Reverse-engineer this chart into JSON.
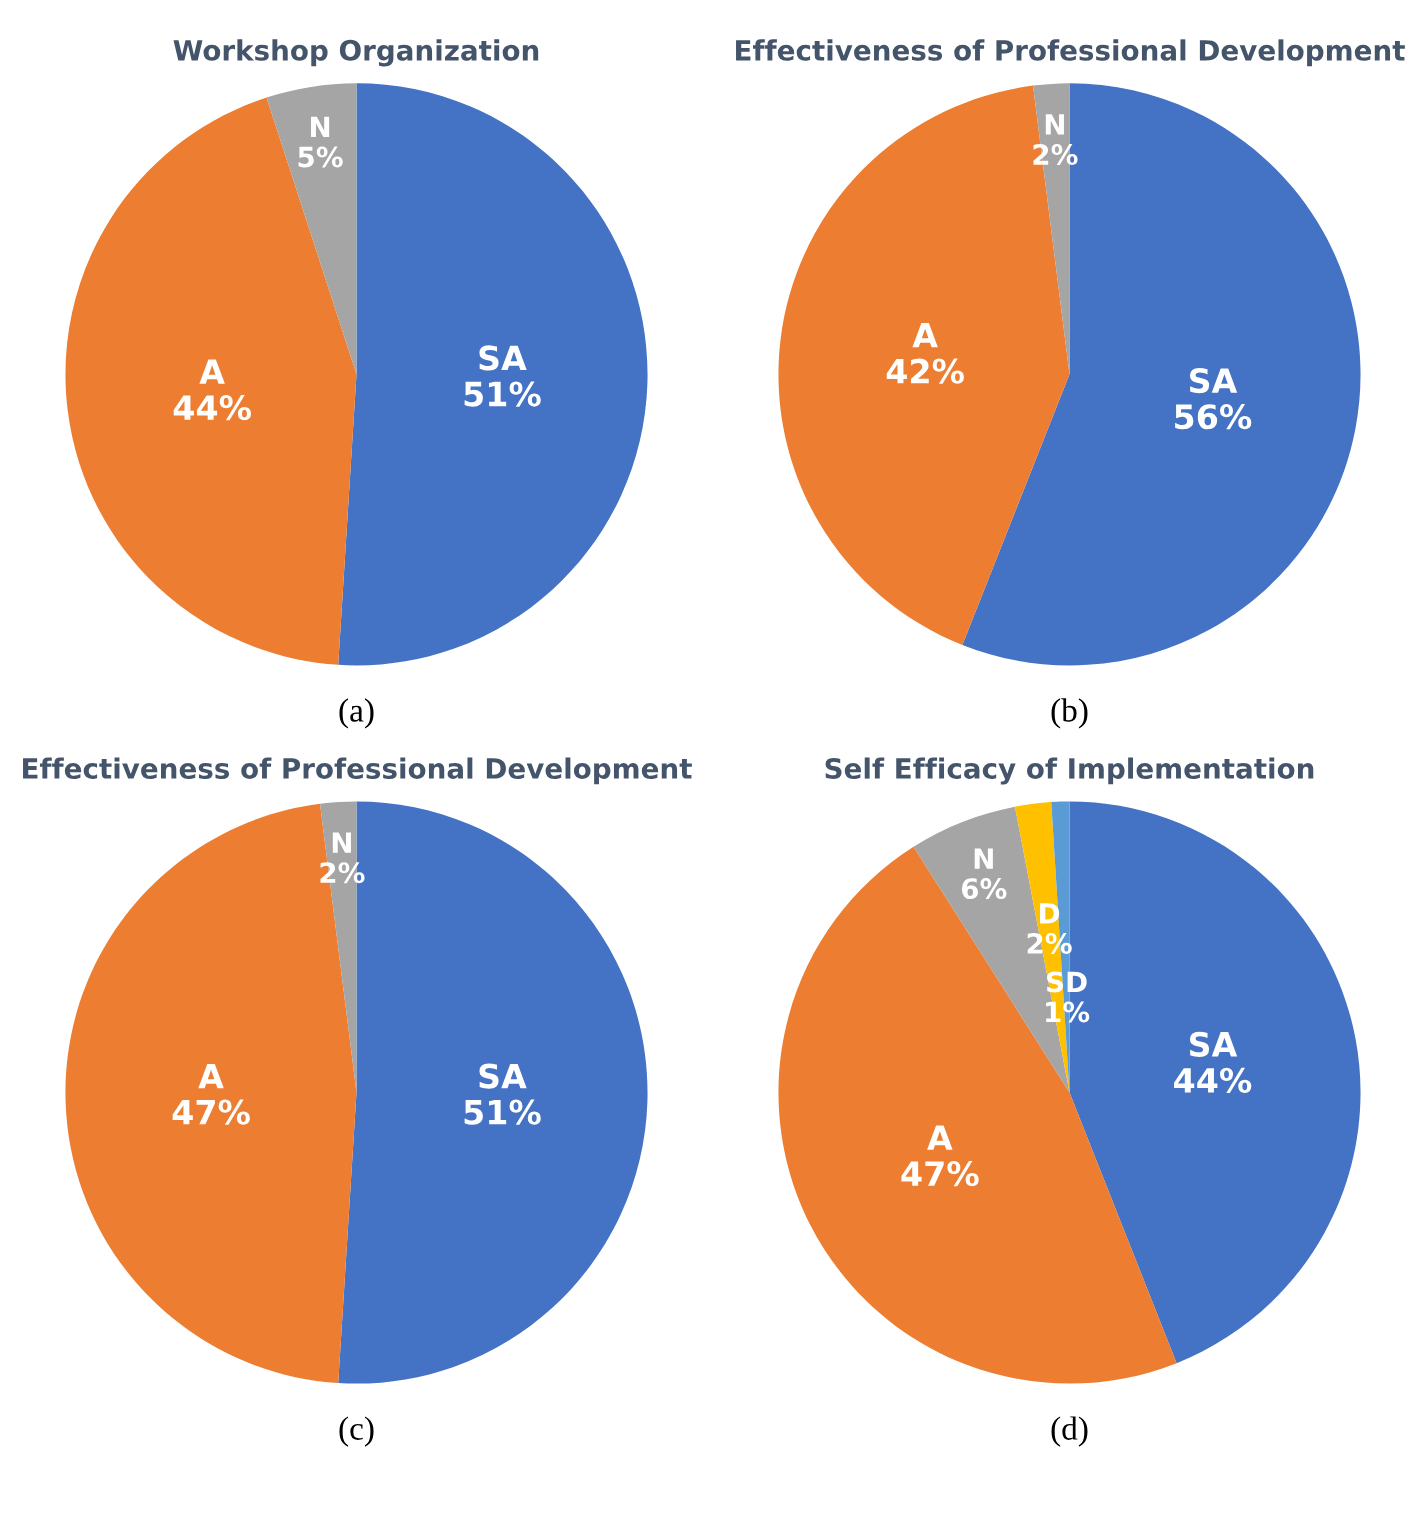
{
  "chart_data": [
    {
      "type": "pie",
      "title": "Workshop Organization",
      "categories": [
        "SA",
        "A",
        "N"
      ],
      "values": [
        51,
        44,
        5
      ],
      "value_labels": [
        "51%",
        "44%",
        "5%"
      ],
      "colors": [
        "#4472c4",
        "#ed7d31",
        "#a5a5a5"
      ],
      "annotations": [
        "(a)"
      ]
    },
    {
      "type": "pie",
      "title": "Effectiveness of Professional Development",
      "categories": [
        "SA",
        "A",
        "N"
      ],
      "values": [
        56,
        42,
        2
      ],
      "value_labels": [
        "56%",
        "42%",
        "2%"
      ],
      "colors": [
        "#4472c4",
        "#ed7d31",
        "#a5a5a5"
      ],
      "annotations": [
        "(b)"
      ]
    },
    {
      "type": "pie",
      "title": "Effectiveness of Professional Development",
      "categories": [
        "SA",
        "A",
        "N"
      ],
      "values": [
        51,
        47,
        2
      ],
      "value_labels": [
        "51%",
        "47%",
        "2%"
      ],
      "colors": [
        "#4472c4",
        "#ed7d31",
        "#a5a5a5"
      ],
      "annotations": [
        "(c)"
      ]
    },
    {
      "type": "pie",
      "title": "Self Efficacy of Implementation",
      "categories": [
        "SA",
        "A",
        "N",
        "D",
        "SD"
      ],
      "values": [
        44,
        47,
        6,
        2,
        1
      ],
      "value_labels": [
        "44%",
        "47%",
        "6%",
        "2%",
        "1%"
      ],
      "colors": [
        "#4472c4",
        "#ed7d31",
        "#a5a5a5",
        "#ffc000",
        "#5b9bd5"
      ],
      "annotations": [
        "(d)"
      ]
    }
  ]
}
